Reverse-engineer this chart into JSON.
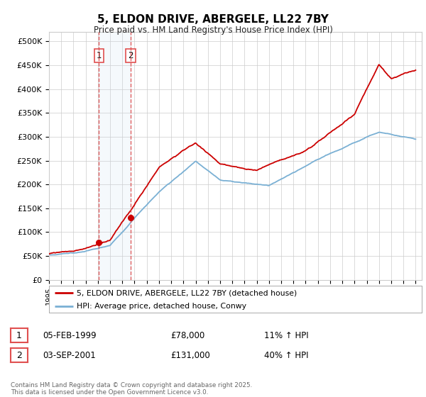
{
  "title": "5, ELDON DRIVE, ABERGELE, LL22 7BY",
  "subtitle": "Price paid vs. HM Land Registry's House Price Index (HPI)",
  "legend_label_red": "5, ELDON DRIVE, ABERGELE, LL22 7BY (detached house)",
  "legend_label_blue": "HPI: Average price, detached house, Conwy",
  "footer": "Contains HM Land Registry data © Crown copyright and database right 2025.\nThis data is licensed under the Open Government Licence v3.0.",
  "sale1_date": "05-FEB-1999",
  "sale1_price": "£78,000",
  "sale1_hpi": "11% ↑ HPI",
  "sale2_date": "03-SEP-2001",
  "sale2_price": "£131,000",
  "sale2_hpi": "40% ↑ HPI",
  "ylabel_ticks": [
    "£0",
    "£50K",
    "£100K",
    "£150K",
    "£200K",
    "£250K",
    "£300K",
    "£350K",
    "£400K",
    "£450K",
    "£500K"
  ],
  "ytick_vals": [
    0,
    50000,
    100000,
    150000,
    200000,
    250000,
    300000,
    350000,
    400000,
    450000,
    500000
  ],
  "red_color": "#cc0000",
  "blue_color": "#7ab0d4",
  "vline_color": "#e05050",
  "shade_color": "#cce0f0",
  "grid_color": "#cccccc",
  "background_color": "#ffffff",
  "sale1_x": 1999.09,
  "sale2_x": 2001.67
}
